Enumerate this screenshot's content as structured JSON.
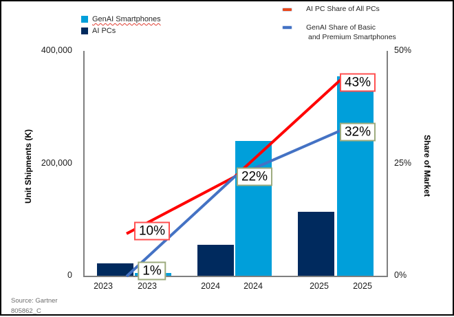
{
  "legend": {
    "bars": [
      {
        "label": "GenAI Smartphones",
        "color": "#009FDA"
      },
      {
        "label": "AI PCs",
        "color": "#002A5E"
      }
    ],
    "lines": [
      {
        "label": "AI PC Share of All PCs",
        "color": "#E8481C"
      },
      {
        "label_line1": "GenAI Share of Basic",
        "label_line2": "and Premium Smartphones",
        "color": "#4472C4"
      }
    ]
  },
  "source": {
    "line1": "Source: Gartner",
    "line2": "805862_C"
  },
  "chart_data": {
    "type": "combo_bar_line",
    "title": "",
    "x_groups": [
      "2023",
      "2024",
      "2025"
    ],
    "x_tick_labels": [
      "2023",
      "2023",
      "2024",
      "2024",
      "2025",
      "2025"
    ],
    "left_axis": {
      "title": "Unit Shipments (K)",
      "tick_labels": [
        "400,000",
        "200,000",
        "0"
      ],
      "tick_values": [
        400000,
        200000,
        0
      ],
      "range": [
        0,
        400000
      ]
    },
    "right_axis": {
      "title": "Share of Market",
      "tick_labels": [
        "50%",
        "25%",
        "0%"
      ],
      "tick_values": [
        50,
        25,
        0
      ],
      "range": [
        0,
        50
      ]
    },
    "bar_series": [
      {
        "name": "AI PCs",
        "color": "#002A5E",
        "values": [
          22000,
          54500,
          114000
        ]
      },
      {
        "name": "GenAI Smartphones",
        "color": "#009FDA",
        "values": [
          5500,
          240000,
          355000
        ]
      }
    ],
    "line_series": [
      {
        "name": "AI PC Share of All PCs",
        "color": "#FF0000",
        "values_pct": [
          10,
          22,
          43
        ]
      },
      {
        "name": "GenAI Share of Basic and Premium Smartphones",
        "color": "#4472C4",
        "values_pct": [
          1,
          22,
          32
        ]
      }
    ],
    "annotations": [
      {
        "text": "10%",
        "line": 0,
        "group": 0,
        "border_color": "#FF5050"
      },
      {
        "text": "1%",
        "line": 1,
        "group": 0,
        "border_color": "#9DAB7E"
      },
      {
        "text": "22%",
        "line": 0,
        "group": 1,
        "border_color": "#9DAB7E"
      },
      {
        "text": "43%",
        "line": 0,
        "group": 2,
        "border_color": "#FF5050"
      },
      {
        "text": "32%",
        "line": 1,
        "group": 2,
        "border_color": "#9DAB7E"
      }
    ],
    "grid": false,
    "legend_position": "top"
  }
}
